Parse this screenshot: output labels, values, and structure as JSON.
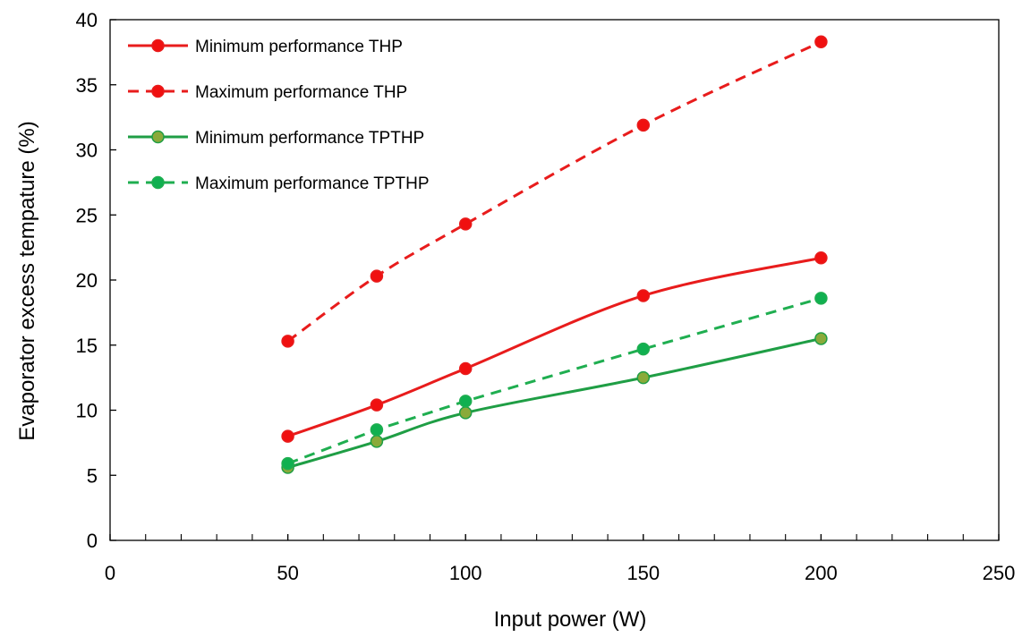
{
  "chart_data": {
    "type": "line",
    "title": "",
    "xlabel": "Input power (W)",
    "ylabel": "Evaporator excess tempature (%)",
    "xlim": [
      0,
      250
    ],
    "ylim": [
      0,
      40
    ],
    "xticks": [
      0,
      50,
      100,
      150,
      200,
      250
    ],
    "yticks": [
      0,
      5,
      10,
      15,
      20,
      25,
      30,
      35,
      40
    ],
    "x_minor_step": 10,
    "grid": false,
    "legend_position": "top-left",
    "x": [
      50,
      75,
      100,
      150,
      200
    ],
    "series": [
      {
        "name": "Minimum performance THP",
        "values": [
          8.0,
          10.4,
          13.2,
          18.8,
          21.7
        ],
        "color": "#e81c1c",
        "marker_fill": "#f01010",
        "line_style": "solid",
        "smooth": true
      },
      {
        "name": "Maximum performance THP",
        "values": [
          15.3,
          20.3,
          24.3,
          31.9,
          38.3
        ],
        "color": "#e81c1c",
        "marker_fill": "#f01010",
        "line_style": "dashed",
        "smooth": true
      },
      {
        "name": "Minimum performance TPTHP",
        "values": [
          5.6,
          7.6,
          9.8,
          12.5,
          15.5
        ],
        "color": "#1f9e45",
        "marker_fill": "#8aaa3a",
        "line_style": "solid",
        "smooth": true
      },
      {
        "name": "Maximum performance TPTHP",
        "values": [
          5.9,
          8.5,
          10.7,
          14.7,
          18.6
        ],
        "color": "#1fae50",
        "marker_fill": "#10b050",
        "line_style": "dashed",
        "smooth": false
      }
    ]
  }
}
